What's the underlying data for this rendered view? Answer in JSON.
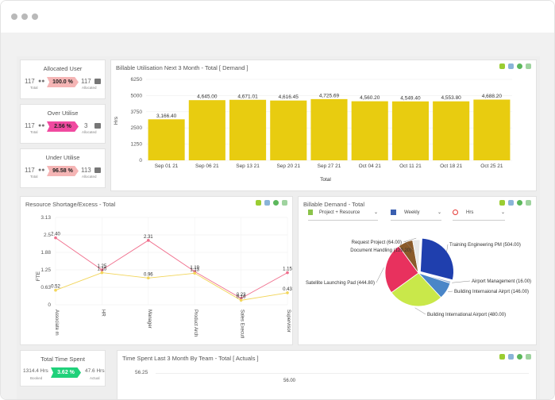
{
  "window": {
    "controls": [
      "close",
      "minimize",
      "maximize"
    ]
  },
  "kpis": [
    {
      "title": "Allocated User",
      "total": "117",
      "total_label": "Total",
      "percent": "100.0 %",
      "value": "117",
      "value_label": "Allocated",
      "color": "#f5b5b5"
    },
    {
      "title": "Over Utilise",
      "total": "117",
      "total_label": "Total",
      "percent": "2.56 %",
      "value": "3",
      "value_label": "Allocated",
      "color": "#f04aa0"
    },
    {
      "title": "Under Utilise",
      "total": "117",
      "total_label": "Total",
      "percent": "96.58 %",
      "value": "113",
      "value_label": "Allocated",
      "color": "#f5b5b5"
    }
  ],
  "billable_util": {
    "title": "Billable Utilisation Next 3 Month - Total [ Demand ]",
    "chart_data": {
      "type": "bar",
      "categories": [
        "Sep 01 21",
        "Sep 06 21",
        "Sep 13 21",
        "Sep 20 21",
        "Sep 27 21",
        "Oct 04 21",
        "Oct 11 21",
        "Oct 18 21",
        "Oct 25 21"
      ],
      "values": [
        3166.4,
        4645.0,
        4671.01,
        4616.45,
        4725.69,
        4560.2,
        4549.4,
        4553.8,
        4688.2
      ],
      "labels": [
        "3,166.40",
        "4,645.00",
        "4,671.01",
        "4,616.45",
        "4,725.69",
        "4,560.20",
        "4,549.40",
        "4,553.80",
        "4,688.20"
      ],
      "yticks": [
        "6250",
        "5000",
        "3750",
        "2500",
        "1250",
        "0"
      ],
      "ylim": [
        0,
        6250
      ],
      "ylabel": "Hrs",
      "xlabel": "Total",
      "color": "#e8cc10"
    }
  },
  "shortage": {
    "title": "Resource Shortage/Excess - Total",
    "chart_data": {
      "type": "line",
      "categories": [
        "Associate m",
        "HR",
        "Manager",
        "Product Arch",
        "Sales Executi",
        "Supervisor"
      ],
      "series": [
        {
          "values": [
            2.4,
            1.25,
            2.31,
            1.19,
            0.23,
            1.15
          ],
          "labels": [
            "2.40",
            "1.25",
            "2.31",
            "1.19",
            "0.23",
            "1.15"
          ],
          "color": "#f06e8c"
        },
        {
          "values": [
            0.52,
            1.15,
            0.96,
            1.13,
            0.16,
            0.43
          ],
          "labels": [
            "0.52",
            "1.15",
            "0.96",
            "1.13",
            "0.16",
            "0.43"
          ],
          "color": "#f2d55a"
        }
      ],
      "yticks": [
        "3.13",
        "2.5",
        "1.88",
        "1.25",
        "0.63",
        "0"
      ],
      "ylim": [
        0,
        3.13
      ],
      "ylabel": "FTE"
    }
  },
  "billable_demand": {
    "title": "Billable Demand - Total",
    "controls": {
      "group": "Project + Resource",
      "period": "Weekly",
      "unit": "Hrs"
    },
    "chart_data": {
      "type": "pie",
      "slices": [
        {
          "label": "Training Engineering PM (504.00)",
          "value": 504.0,
          "color": "#1f3fae"
        },
        {
          "label": "Airport Management (16.00)",
          "value": 16.0,
          "color": "#8fa9cf"
        },
        {
          "label": "Building Internaional Airprt (146.00)",
          "value": 146.0,
          "color": "#4a86c8"
        },
        {
          "label": "Building International Airport (480.00)",
          "value": 480.0,
          "color": "#c9e84a"
        },
        {
          "label": "Satellite Launching  Pad (444.80)",
          "value": 444.8,
          "color": "#e8315e"
        },
        {
          "label": "Document Handling (129.20)",
          "value": 129.2,
          "color": "#8a5a2a"
        },
        {
          "label": "Request Project (64.00)",
          "value": 64.0,
          "color": "#e8e8e8"
        }
      ]
    }
  },
  "total_time": {
    "title": "Total Time Spent",
    "booked": "1314.4 Hrs",
    "booked_label": "Booked",
    "percent": "3.62 %",
    "actual": "47.6 Hrs",
    "actual_label": "Actual",
    "color": "#1fd17a"
  },
  "time_by_team": {
    "title": "Time Spent Last 3 Month By Team - Total [ Actuals ]",
    "ytick": "56.25",
    "bar_label": "56.00"
  }
}
